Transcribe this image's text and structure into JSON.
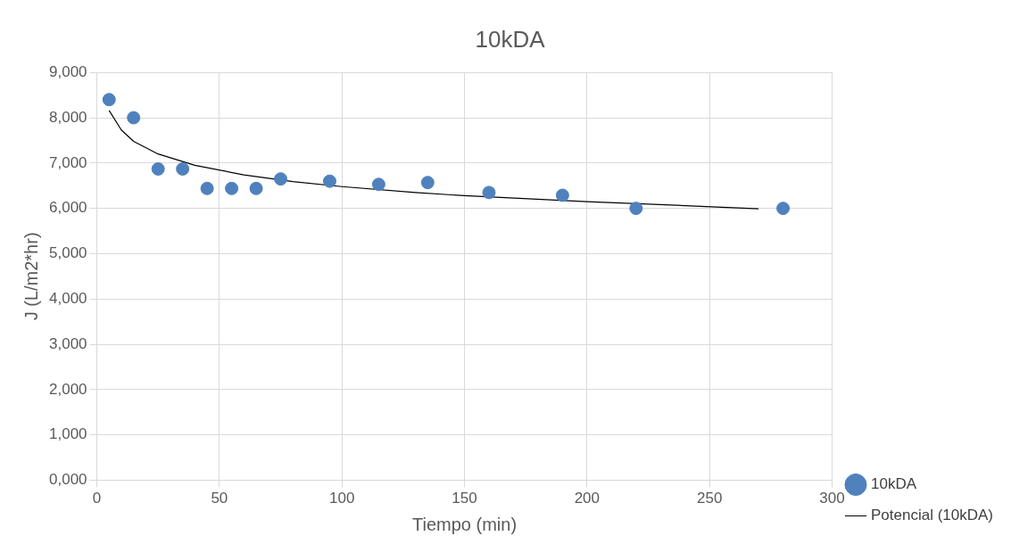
{
  "chart_data": {
    "type": "scatter",
    "title": "10kDA",
    "xlabel": "Tiempo (min)",
    "ylabel": "J (L/m2*hr)",
    "x": [
      5,
      15,
      25,
      35,
      45,
      55,
      65,
      75,
      95,
      115,
      135,
      160,
      190,
      220,
      280
    ],
    "series": [
      {
        "name": "10kDA",
        "color": "#4f81bd",
        "values": [
          8400,
          8000,
          6870,
          6870,
          6440,
          6440,
          6440,
          6650,
          6600,
          6530,
          6570,
          6350,
          6290,
          6000,
          6000
        ]
      },
      {
        "name": "Potencial (10kDA)",
        "color": "#000000",
        "type": "line",
        "marker": "none",
        "x": [
          5,
          10,
          15,
          25,
          40,
          60,
          80,
          100,
          130,
          150,
          200,
          240,
          270
        ],
        "values": [
          8160,
          7730,
          7480,
          7200,
          6950,
          6740,
          6590,
          6480,
          6350,
          6280,
          6150,
          6060,
          5990
        ]
      }
    ],
    "xlim": [
      0,
      300
    ],
    "xticks": [
      0,
      50,
      100,
      150,
      200,
      250,
      300
    ],
    "ylim": [
      0,
      9000
    ],
    "yticks": [
      {
        "value": 0,
        "label": "0,000"
      },
      {
        "value": 1000,
        "label": "1,000"
      },
      {
        "value": 2000,
        "label": "2,000"
      },
      {
        "value": 3000,
        "label": "3,000"
      },
      {
        "value": 4000,
        "label": "4,000"
      },
      {
        "value": 5000,
        "label": "5,000"
      },
      {
        "value": 6000,
        "label": "6,000"
      },
      {
        "value": 7000,
        "label": "7,000"
      },
      {
        "value": 8000,
        "label": "8,000"
      },
      {
        "value": 9000,
        "label": "9,000"
      }
    ],
    "grid": true,
    "legend": "right",
    "marker": "circle"
  }
}
